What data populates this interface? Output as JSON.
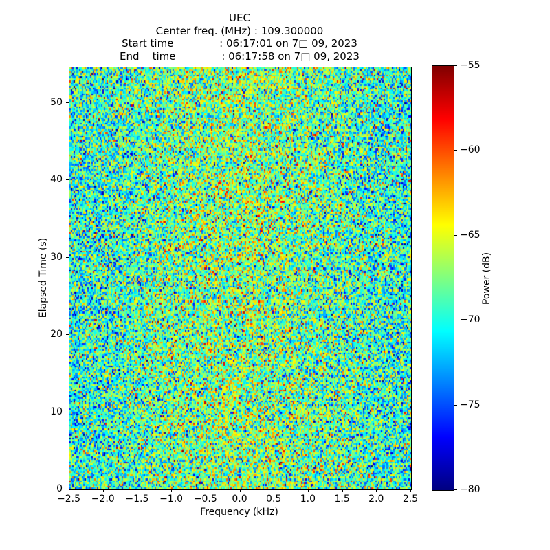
{
  "chart_data": {
    "type": "heatmap",
    "title": "UEC",
    "header_lines": [
      "Center freq. (MHz) : 109.300000",
      "Start time              : 06:17:01 on 7□ 09, 2023",
      "End    time              : 06:17:58 on 7□ 09, 2023"
    ],
    "xlabel": "Frequency (kHz)",
    "ylabel": "Elapsed Time (s)",
    "xlim": [
      -2.5,
      2.5
    ],
    "ylim": [
      0,
      54.6
    ],
    "xticks": [
      "−2.5",
      "−2.0",
      "−1.5",
      "−1.0",
      "−0.5",
      "0.0",
      "0.5",
      "1.0",
      "1.5",
      "2.0",
      "2.5"
    ],
    "yticks": [
      "0",
      "10",
      "20",
      "30",
      "40",
      "50"
    ],
    "grid": false,
    "legend": "none",
    "colormap": "jet",
    "colormap_stops": [
      {
        "pos": 0.0,
        "color": "#000080"
      },
      {
        "pos": 0.125,
        "color": "#0000ff"
      },
      {
        "pos": 0.375,
        "color": "#00ffff"
      },
      {
        "pos": 0.5,
        "color": "#80ff80"
      },
      {
        "pos": 0.625,
        "color": "#ffff00"
      },
      {
        "pos": 0.875,
        "color": "#ff0000"
      },
      {
        "pos": 1.0,
        "color": "#800000"
      }
    ],
    "colorbar": {
      "label": "Power (dB)",
      "ticks": [
        "−55",
        "−60",
        "−65",
        "−70",
        "−75",
        "−80"
      ],
      "vmin": -80,
      "vmax": -55
    },
    "data_description": "Dense random noise field with no coherent signal; power mostly between -75 and -63 dB (cyan/green/yellow speckle), slightly brighter near the center frequency, scattered dark-blue and rare orange/red cells.",
    "noise_model": {
      "rows": 228,
      "cols": 248,
      "edge_mean_db": -70.5,
      "center_bump_db": 3.2,
      "bump_sigma_frac": 0.28,
      "std_db": 4.0,
      "clip_db": [
        -80,
        -55
      ],
      "seed": 20230709
    }
  }
}
